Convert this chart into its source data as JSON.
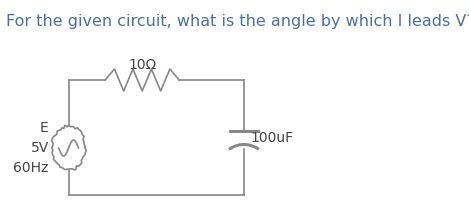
{
  "title": "For the given circuit, what is the angle by which I leads V?",
  "title_color": "#4a6fa5",
  "title_fontsize": 11.5,
  "bg_color": "#ffffff",
  "line_color": "#888888",
  "text_color": "#444444",
  "circuit": {
    "resistor_label": "10Ω",
    "capacitor_label": "100uF",
    "source_label_E": "E",
    "source_label_V": "5V",
    "source_label_Hz": "60Hz"
  },
  "figsize": [
    4.69,
    2.22
  ],
  "dpi": 100
}
